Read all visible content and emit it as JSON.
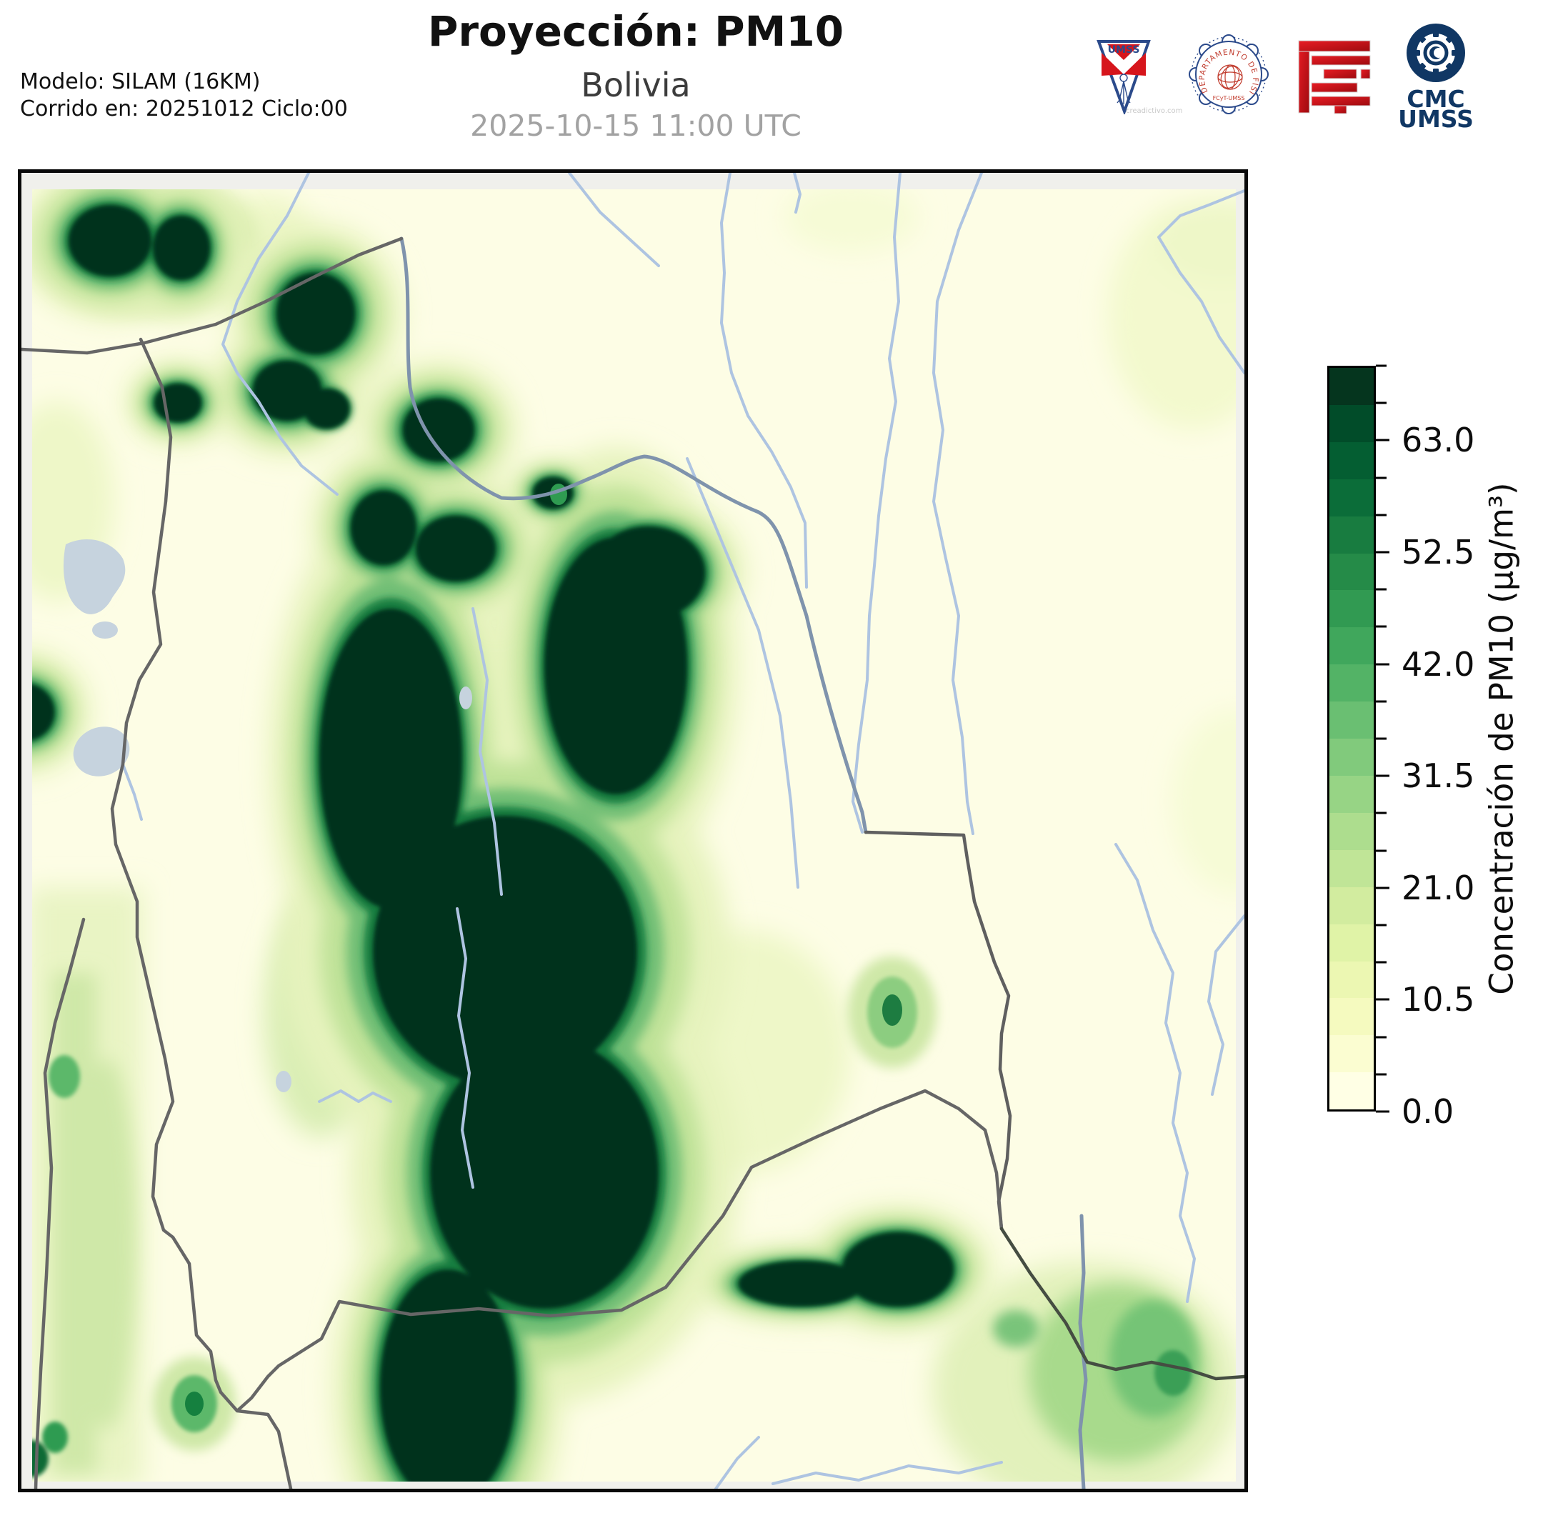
{
  "header": {
    "title": "Proyección: PM10",
    "subtitle": "Bolivia",
    "datetime": "2025-10-15 11:00 UTC",
    "model_line1": "Modelo: SILAM (16KM)",
    "model_line2": "Corrido en: 20251012 Ciclo:00"
  },
  "logos": {
    "umss": {
      "label": "UMSS",
      "watermark": "creadictivo.com"
    },
    "fisica": {
      "ring_text": "DEPARTAMENTO DE FÍSICA",
      "bottom_text": "FCyT-UMSS"
    },
    "cmc": {
      "line1": "CMC",
      "line2": "UMSS"
    }
  },
  "colorbar": {
    "axis_label": "Concentración de PM10 (µg/m³)",
    "tick_labels": [
      "0.0",
      "10.5",
      "21.0",
      "31.5",
      "42.0",
      "52.5",
      "63.0"
    ],
    "value_min": 0,
    "value_max": 70,
    "value_step": 3.5,
    "segment_colors": [
      "#ffffe5",
      "#fbfdd1",
      "#f5fabf",
      "#ecf7b2",
      "#e0f3a7",
      "#d2ec9f",
      "#c0e597",
      "#addd8e",
      "#97d485",
      "#81ca7c",
      "#6abf72",
      "#53b366",
      "#40a75c",
      "#319a52",
      "#258b48",
      "#187c40",
      "#0b6d39",
      "#045e32",
      "#014c29",
      "#05351e"
    ]
  },
  "map": {
    "variable": "PM10",
    "units": "µg/m³",
    "colors": {
      "axes_margin": "#f0f0ec",
      "field_background": "#fdfde5",
      "contour_dark_core": "#06311b",
      "national_border": "#666666",
      "border_dark_se": "#454d42",
      "river_border": "#7f93ac",
      "river": "#aec4e1",
      "lake": "#c6d3de"
    }
  }
}
